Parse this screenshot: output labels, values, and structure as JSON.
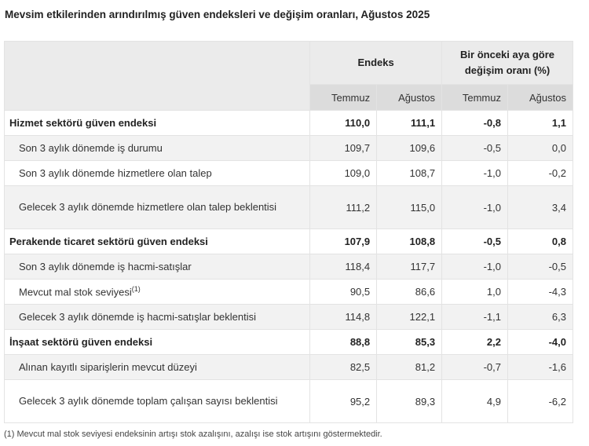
{
  "title": "Mevsim etkilerinden arındırılmış güven endeksleri ve değişim oranları, Ağustos 2025",
  "header": {
    "group1": "Endeks",
    "group2": "Bir önceki aya göre değişim oranı (%)",
    "sub": [
      "Temmuz",
      "Ağustos",
      "Temmuz",
      "Ağustos"
    ]
  },
  "rows": [
    {
      "label": "Hizmet sektörü güven endeksi",
      "values": [
        "110,0",
        "111,1",
        "-0,8",
        "1,1"
      ]
    },
    {
      "label": "Son 3 aylık dönemde iş durumu",
      "values": [
        "109,7",
        "109,6",
        "-0,5",
        "0,0"
      ]
    },
    {
      "label": "Son 3 aylık dönemde hizmetlere olan talep",
      "values": [
        "109,0",
        "108,7",
        "-1,0",
        "-0,2"
      ]
    },
    {
      "label": "Gelecek 3 aylık dönemde hizmetlere olan talep beklentisi",
      "values": [
        "111,2",
        "115,0",
        "-1,0",
        "3,4"
      ]
    },
    {
      "label": "Perakende ticaret sektörü güven endeksi",
      "values": [
        "107,9",
        "108,8",
        "-0,5",
        "0,8"
      ]
    },
    {
      "label": "Son 3 aylık dönemde iş hacmi-satışlar",
      "values": [
        "118,4",
        "117,7",
        "-1,0",
        "-0,5"
      ]
    },
    {
      "label": "Mevcut mal stok seviyesi",
      "sup": "(1)",
      "values": [
        "90,5",
        "86,6",
        "1,0",
        "-4,3"
      ]
    },
    {
      "label": "Gelecek 3 aylık dönemde iş hacmi-satışlar beklentisi",
      "values": [
        "114,8",
        "122,1",
        "-1,1",
        "6,3"
      ]
    },
    {
      "label": "İnşaat sektörü güven endeksi",
      "values": [
        "88,8",
        "85,3",
        "2,2",
        "-4,0"
      ]
    },
    {
      "label": "Alınan kayıtlı siparişlerin mevcut düzeyi",
      "values": [
        "82,5",
        "81,2",
        "-0,7",
        "-1,6"
      ]
    },
    {
      "label": "Gelecek 3 aylık dönemde toplam çalışan sayısı beklentisi",
      "values": [
        "95,2",
        "89,3",
        "4,9",
        "-6,2"
      ]
    }
  ],
  "footnote": "(1) Mevcut mal stok seviyesi endeksinin artışı stok azalışını, azalışı ise stok artışını göstermektedir."
}
